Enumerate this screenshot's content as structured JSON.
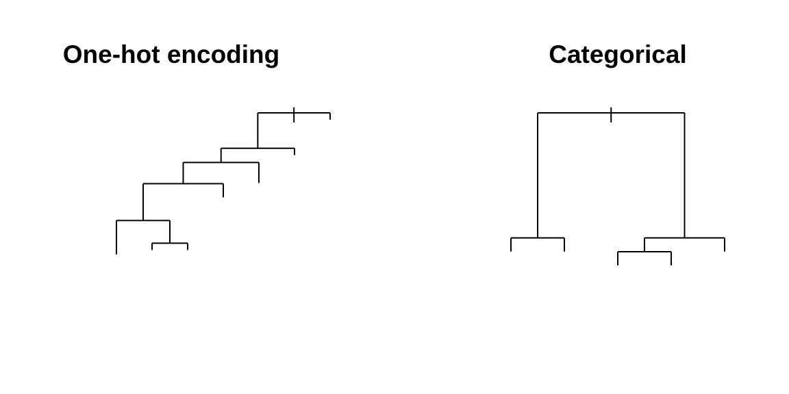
{
  "panels": [
    {
      "title": "One-hot encoding",
      "merges": [
        {
          "left": "L1",
          "right": "L2",
          "height": 0.08
        },
        {
          "left": "L0",
          "right": "M0",
          "height": 0.24
        },
        {
          "left": "L3",
          "right": "M1",
          "height": 0.5
        },
        {
          "left": "L4",
          "right": "M2",
          "height": 0.65
        },
        {
          "left": "L5",
          "right": "M3",
          "height": 0.75
        },
        {
          "left": "L6",
          "right": "M4",
          "height": 1.0
        }
      ]
    },
    {
      "title": "Categorical",
      "merges": [
        {
          "left": "L2",
          "right": "L3",
          "height": 0.0
        },
        {
          "left": "L0",
          "right": "L1",
          "height": 0.1
        },
        {
          "left": "M0",
          "right": "L4",
          "height": 0.1
        },
        {
          "left": "M1",
          "right": "M2",
          "height": 1.0
        }
      ]
    }
  ],
  "colors": {
    "line": "#000000",
    "background": "#ffffff"
  }
}
